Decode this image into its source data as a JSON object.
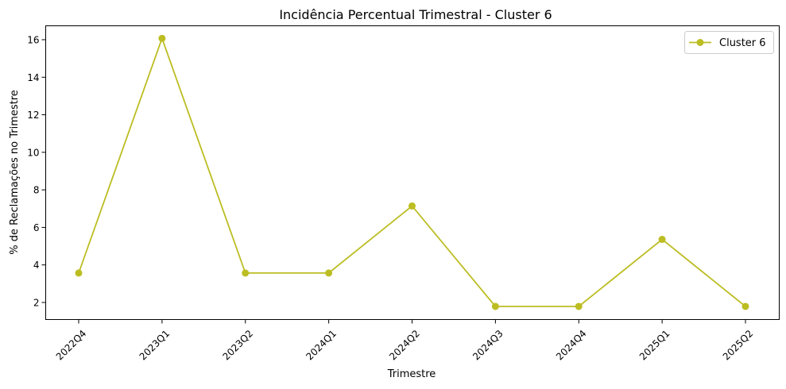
{
  "chart_data": {
    "type": "line",
    "title": "Incidência Percentual Trimestral - Cluster 6",
    "xlabel": "Trimestre",
    "ylabel": "% de Reclamações no Trimestre",
    "categories": [
      "2022Q4",
      "2023Q1",
      "2023Q2",
      "2024Q1",
      "2024Q2",
      "2024Q3",
      "2024Q4",
      "2025Q1",
      "2025Q2"
    ],
    "series": [
      {
        "name": "Cluster 6",
        "values": [
          3.57,
          16.07,
          3.57,
          3.57,
          7.14,
          1.79,
          1.79,
          5.36,
          1.79
        ],
        "color": "#bcbd22",
        "marker": "circle"
      }
    ],
    "yticks": [
      2,
      4,
      6,
      8,
      10,
      12,
      14,
      16
    ],
    "ylim": [
      1.1,
      16.8
    ],
    "grid": false,
    "legend": "top-right"
  }
}
